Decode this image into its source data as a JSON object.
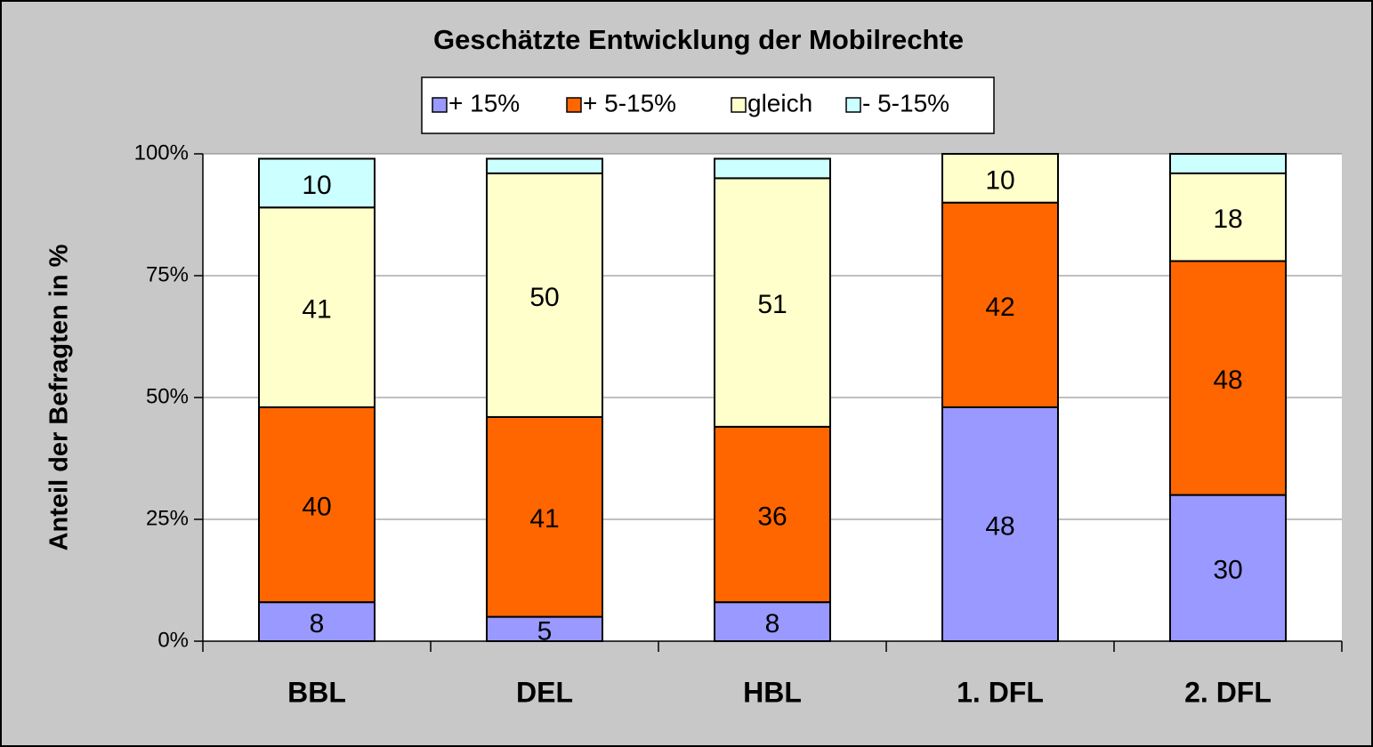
{
  "chart_data": {
    "type": "stacked_bar",
    "title": "Geschätzte Entwicklung der Mobilrechte",
    "y_axis_label": "Anteil der Befragten in %",
    "categories": [
      "BBL",
      "DEL",
      "HBL",
      "1. DFL",
      "2. DFL"
    ],
    "series": [
      {
        "name": "+ 15%",
        "color": "#9999ff",
        "values": [
          8,
          5,
          8,
          48,
          30
        ],
        "value_labels": [
          "8",
          "5",
          "8",
          "48",
          "30"
        ]
      },
      {
        "name": "+ 5-15%",
        "color": "#ff6600",
        "values": [
          40,
          41,
          36,
          42,
          48
        ],
        "value_labels": [
          "40",
          "41",
          "36",
          "42",
          "48"
        ]
      },
      {
        "name": "gleich",
        "color": "#ffffcc",
        "values": [
          41,
          50,
          51,
          10,
          18
        ],
        "value_labels": [
          "41",
          "50",
          "51",
          "10",
          "18"
        ]
      },
      {
        "name": "- 5-15%",
        "color": "#ccffff",
        "values": [
          10,
          3,
          4,
          0,
          4
        ],
        "value_labels": [
          "10",
          null,
          null,
          null,
          null
        ]
      }
    ],
    "ylim": [
      0,
      100
    ],
    "yticks": [
      {
        "value": 0,
        "label": "0%"
      },
      {
        "value": 25,
        "label": "25%"
      },
      {
        "value": 50,
        "label": "50%"
      },
      {
        "value": 75,
        "label": "75%"
      },
      {
        "value": 100,
        "label": "100%"
      }
    ],
    "grid": true
  }
}
